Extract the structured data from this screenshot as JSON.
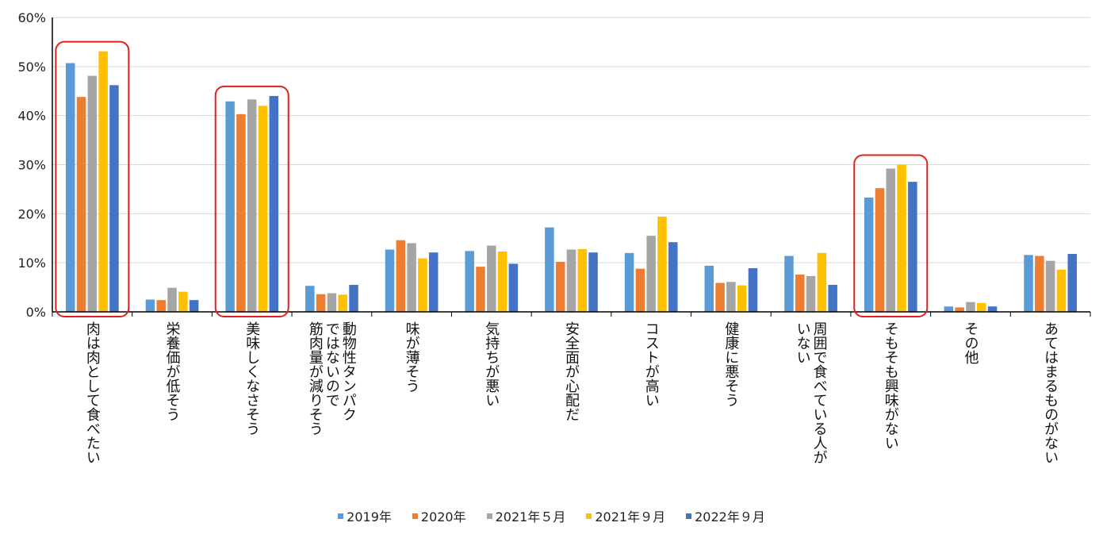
{
  "chart_data": {
    "type": "bar",
    "title": "",
    "xlabel": "",
    "ylabel": "",
    "ylim": [
      0,
      60
    ],
    "yticks": [
      0,
      10,
      20,
      30,
      40,
      50,
      60
    ],
    "ytick_labels": [
      "0%",
      "10%",
      "20%",
      "30%",
      "40%",
      "50%",
      "60%"
    ],
    "grid": true,
    "legend_position": "bottom",
    "categories": [
      "肉は肉として食べたい",
      "栄養価が低そう",
      "美味しくなさそう",
      "動物性タンパクではないので筋肉量が減りそう",
      "味が薄そう",
      "気持ちが悪い",
      "安全面が心配だ",
      "コストが高い",
      "健康に悪そう",
      "周囲で食べている人がいない",
      "そもそも興味がない",
      "その他",
      "あてはまるものがない"
    ],
    "category_lines": [
      [
        "肉は肉として食べたい"
      ],
      [
        "栄養価が低そう"
      ],
      [
        "美味しくなさそう"
      ],
      [
        "動物性タンパク",
        "ではないので",
        "筋肉量が減りそう"
      ],
      [
        "味が薄そう"
      ],
      [
        "気持ちが悪い"
      ],
      [
        "安全面が心配だ"
      ],
      [
        "コストが高い"
      ],
      [
        "健康に悪そう"
      ],
      [
        "周囲で食べている人が",
        "いない"
      ],
      [
        "そもそも興味がない"
      ],
      [
        "その他"
      ],
      [
        "あてはまるものがない"
      ]
    ],
    "series": [
      {
        "name": "2019年",
        "color": "#5B9BD5",
        "values": [
          50.7,
          2.5,
          42.9,
          5.3,
          12.7,
          12.4,
          17.2,
          12.0,
          9.4,
          11.4,
          23.3,
          1.1,
          11.6
        ]
      },
      {
        "name": "2020年",
        "color": "#ED7D31",
        "values": [
          43.8,
          2.4,
          40.3,
          3.6,
          14.6,
          9.2,
          10.2,
          8.8,
          5.9,
          7.6,
          25.2,
          0.9,
          11.4
        ]
      },
      {
        "name": "2021年５月",
        "color": "#A5A5A5",
        "values": [
          48.1,
          4.9,
          43.3,
          3.8,
          14.0,
          13.5,
          12.7,
          15.5,
          6.1,
          7.3,
          29.2,
          2.0,
          10.4
        ]
      },
      {
        "name": "2021年９月",
        "color": "#FFC000",
        "values": [
          53.1,
          4.1,
          42.0,
          3.5,
          10.9,
          12.3,
          12.8,
          19.4,
          5.4,
          12.0,
          30.0,
          1.8,
          8.6
        ]
      },
      {
        "name": "2022年９月",
        "color": "#4472C4",
        "values": [
          46.2,
          2.4,
          44.0,
          5.5,
          12.1,
          9.8,
          12.1,
          14.2,
          8.9,
          5.5,
          26.5,
          1.1,
          11.8
        ]
      }
    ],
    "highlighted_categories": [
      0,
      2,
      10
    ],
    "highlight_color": "#E02020"
  }
}
